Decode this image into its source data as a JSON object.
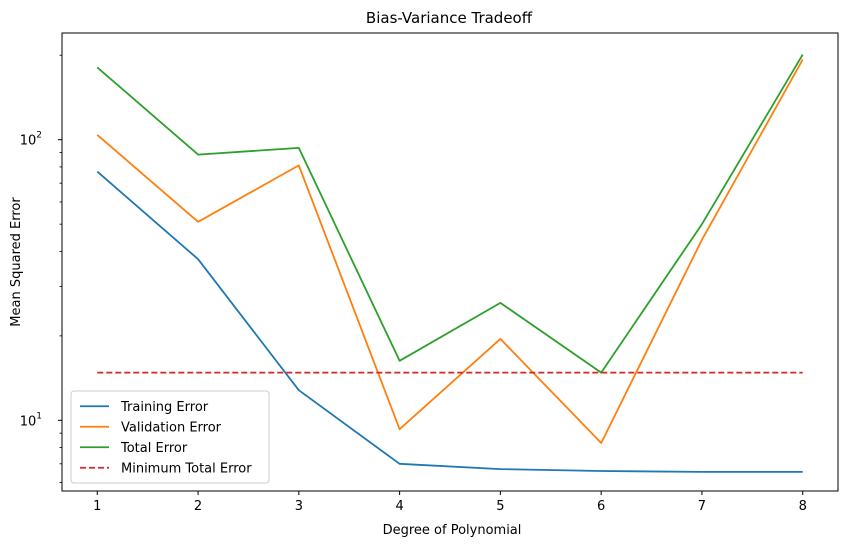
{
  "chart_data": {
    "type": "line",
    "title": "Bias-Variance Tradeoff",
    "xlabel": "Degree of Polynomial",
    "ylabel": "Mean Squared Error",
    "yscale": "log",
    "x": [
      1,
      2,
      3,
      4,
      5,
      6,
      7,
      8
    ],
    "xlim": [
      0.65,
      8.35
    ],
    "ylim": [
      5.6,
      240
    ],
    "xticks": [
      "1",
      "2",
      "3",
      "4",
      "5",
      "6",
      "7",
      "8"
    ],
    "yticks": [
      {
        "value": 10,
        "base": "10",
        "exp": "1"
      },
      {
        "value": 100,
        "base": "10",
        "exp": "2"
      }
    ],
    "grid": false,
    "legend_position": "lower-left",
    "series": [
      {
        "name": "Training Error",
        "color": "#1f77b4",
        "style": "solid",
        "values": [
          77,
          37.5,
          12.8,
          7.0,
          6.7,
          6.6,
          6.55,
          6.55
        ]
      },
      {
        "name": "Validation Error",
        "color": "#ff7f0e",
        "style": "solid",
        "values": [
          104,
          51,
          81,
          9.3,
          19.5,
          8.3,
          44,
          193
        ]
      },
      {
        "name": "Total Error",
        "color": "#2ca02c",
        "style": "solid",
        "values": [
          181,
          88.5,
          93.5,
          16.3,
          26.2,
          14.8,
          50,
          201
        ]
      },
      {
        "name": "Minimum Total Error",
        "color": "#d62728",
        "style": "dashed",
        "values": [
          14.8,
          14.8,
          14.8,
          14.8,
          14.8,
          14.8,
          14.8,
          14.8
        ]
      }
    ]
  }
}
